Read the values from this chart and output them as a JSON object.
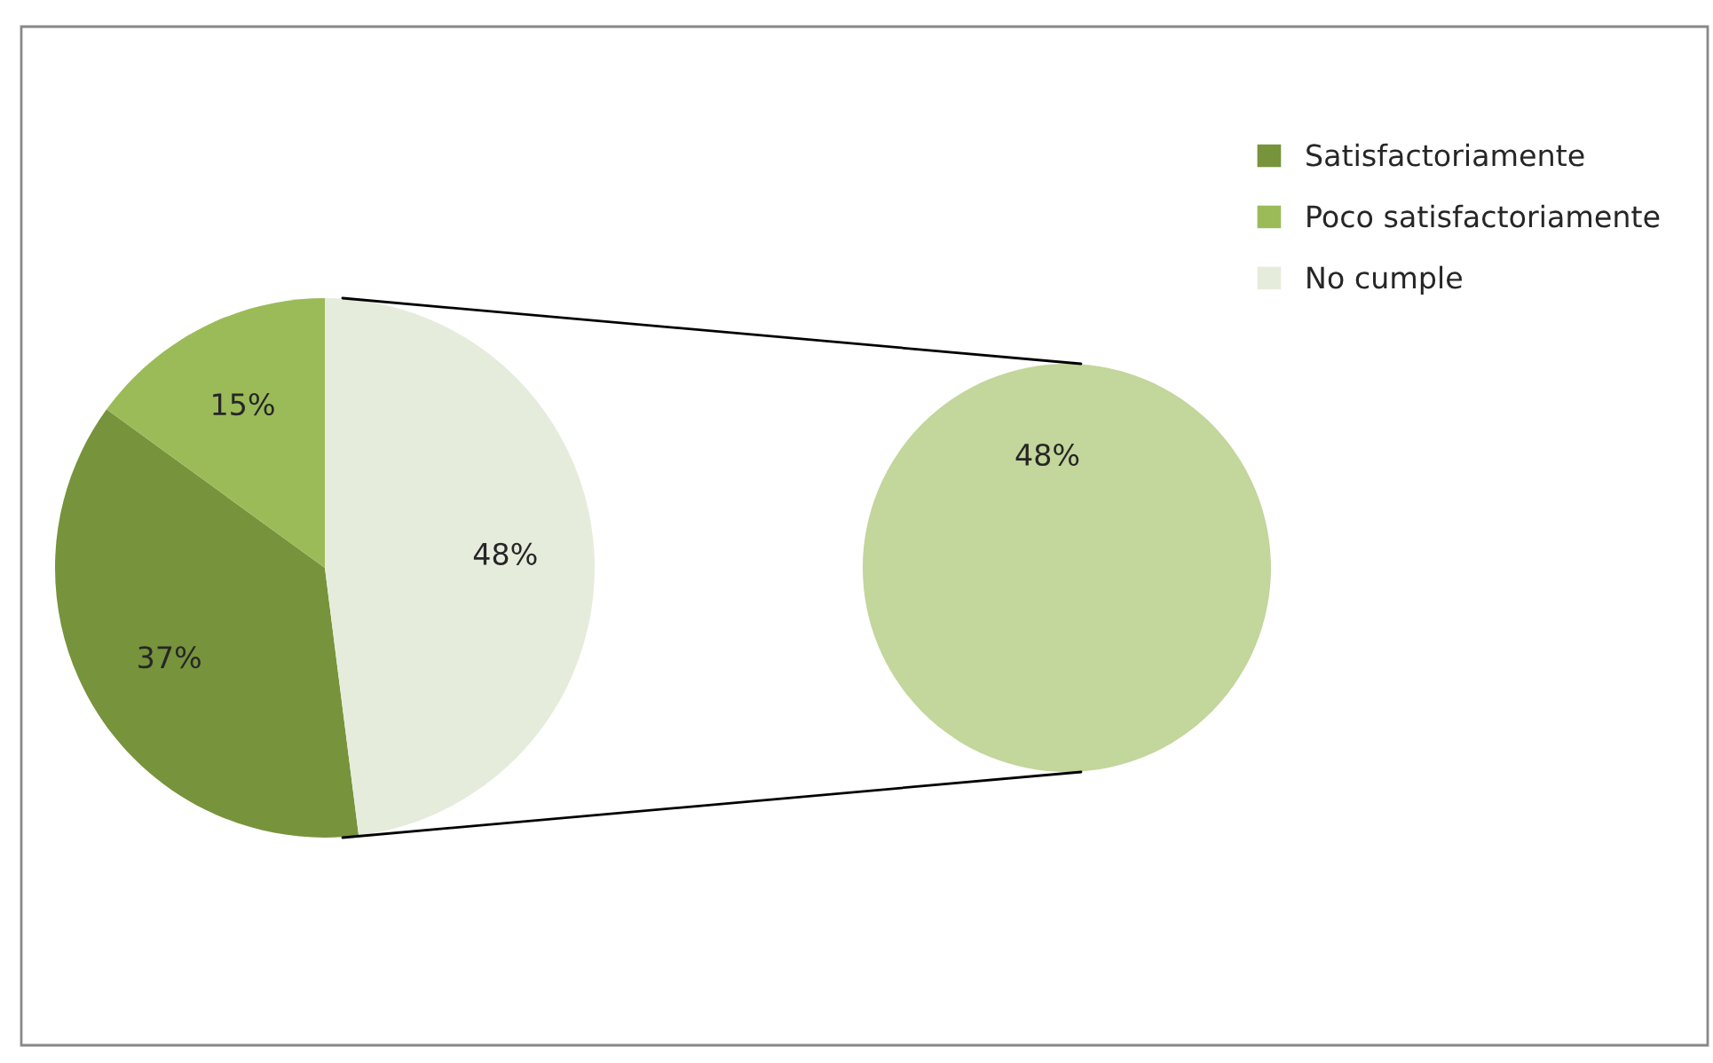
{
  "chart_data": [
    {
      "type": "pie",
      "categories": [
        "Satisfactoriamente",
        "Poco satisfactoriamente",
        "No cumple"
      ],
      "values": [
        37,
        15,
        48
      ],
      "colors": [
        "#77933c",
        "#9bbb59",
        "#e6ecdc"
      ],
      "value_labels": [
        "37%",
        "15%",
        "48%"
      ],
      "legend": "top right"
    },
    {
      "type": "pie",
      "categories": [
        null
      ],
      "values": [
        48
      ],
      "colors": [
        "#c3d69b"
      ],
      "value_labels": [
        "48%"
      ]
    }
  ]
}
